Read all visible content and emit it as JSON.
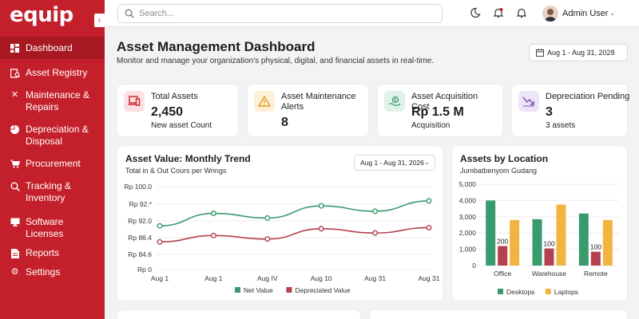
{
  "app": {
    "logo": "equip"
  },
  "sidebar": {
    "items": [
      {
        "icon": "dashboard-icon",
        "label": "Dashboard",
        "active": true
      },
      {
        "icon": "registry-icon",
        "label": "Asset Registry"
      },
      {
        "icon": "wrench-icon",
        "label": "Maintenance & Repairs"
      },
      {
        "icon": "pie-icon",
        "label": "Depreciation & Disposal"
      },
      {
        "icon": "cart-icon",
        "label": "Procurement"
      },
      {
        "icon": "search-icon",
        "label": "Tracking & Inventory"
      },
      {
        "icon": "monitor-icon",
        "label": "Software Licenses"
      },
      {
        "icon": "document-icon",
        "label": "Reports"
      },
      {
        "icon": "gear-icon",
        "label": "Settings"
      }
    ]
  },
  "topbar": {
    "search_placeholder": "Search...",
    "user_name": "Admin User"
  },
  "page": {
    "title": "Asset Management Dashboard",
    "subtitle": "Monitor and manage your organization's physical, digital, and financial assets in real-time.",
    "date_range": "Aug 1 - Aug 31, 2028"
  },
  "kpis": [
    {
      "label": "Total Assets",
      "value": "2,450",
      "sub": "New asset Count",
      "icon": "laptop-icon"
    },
    {
      "label": "Asset Maintenance Alerts",
      "value": "8",
      "sub": "",
      "icon": "warning-icon"
    },
    {
      "label": "Asset Acquisition Cost",
      "value": "Rp 1.5 M",
      "sub": "Acquisition",
      "icon": "money-hand-icon"
    },
    {
      "label": "Depreciation Pending",
      "value": "3",
      "sub": "3 assets",
      "icon": "trend-down-icon"
    }
  ],
  "colors": {
    "brand": "#c4202b",
    "green": "#3a9a6e",
    "red": "#b5404e",
    "yellow": "#f2b441"
  },
  "line_chart": {
    "title": "Asset Value: Monthly Trend",
    "subtitle": "Total in & Out Cours per Wrings",
    "date_range": "Aug 1 - Aug 31, 2026",
    "chart_data": {
      "type": "line",
      "x": [
        "Aug 1",
        "Aug 1",
        "Aug IV",
        "Aug 10",
        "Aug 31",
        "Aug 31"
      ],
      "y_ticks": [
        "Rp 100.0",
        "Rp 92.*",
        "Rp 92.0",
        "Rp 86.4",
        "Rp 84.6",
        "Rp 0"
      ],
      "series": [
        {
          "name": "Net Value",
          "color": "#3a9a6e",
          "values": [
            89.0,
            92.5,
            91.2,
            94.6,
            93.1,
            96.0
          ]
        },
        {
          "name": "Depreciated Value",
          "color": "#b5404e",
          "values": [
            84.5,
            86.3,
            85.3,
            88.2,
            87.0,
            88.5
          ]
        }
      ]
    }
  },
  "bar_chart": {
    "title": "Assets by Location",
    "subtitle": "Jumbatbenyom Gudang",
    "chart_data": {
      "type": "bar",
      "categories": [
        "Office",
        "Warehouse",
        "Remote"
      ],
      "y_ticks": [
        "5,000",
        "4,000",
        "3,000",
        "2,000",
        "1,000",
        "0"
      ],
      "ylim": [
        0,
        5000
      ],
      "series": [
        {
          "name": "Desktops",
          "color": "#3a9a6e",
          "values": [
            4000,
            2850,
            3200
          ]
        },
        {
          "name": "",
          "color": "#b5404e",
          "values": [
            1200,
            1050,
            850
          ]
        },
        {
          "name": "Laptops",
          "color": "#f2b441",
          "values": [
            2800,
            3750,
            2800
          ]
        }
      ],
      "labels": [
        "200",
        "100",
        "100"
      ]
    }
  }
}
